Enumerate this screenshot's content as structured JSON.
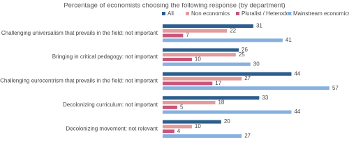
{
  "chart_data": {
    "type": "hbar",
    "title": "Percentage of economists choosing the following response (by department)",
    "categories": [
      "Challenging universalism that prevails in the field: not important",
      "Bringing in critical pedagogy: not important",
      "Challenging eurocentrism that prevails in the field: not important",
      "Decolonizing curriculum: not important",
      "Decolonizing movement: not relevant"
    ],
    "series": [
      {
        "name": "All",
        "color": "#2d5d8e",
        "values": [
          31,
          26,
          44,
          33,
          20
        ]
      },
      {
        "name": "Non economics",
        "color": "#e59a9c",
        "values": [
          22,
          25,
          27,
          18,
          10
        ]
      },
      {
        "name": "Pluralist / Heterodox",
        "color": "#c8557a",
        "values": [
          7,
          10,
          17,
          5,
          4
        ]
      },
      {
        "name": "Mainstream economics",
        "color": "#86b0df",
        "values": [
          41,
          30,
          57,
          44,
          27
        ]
      }
    ],
    "legend": "top"
  }
}
